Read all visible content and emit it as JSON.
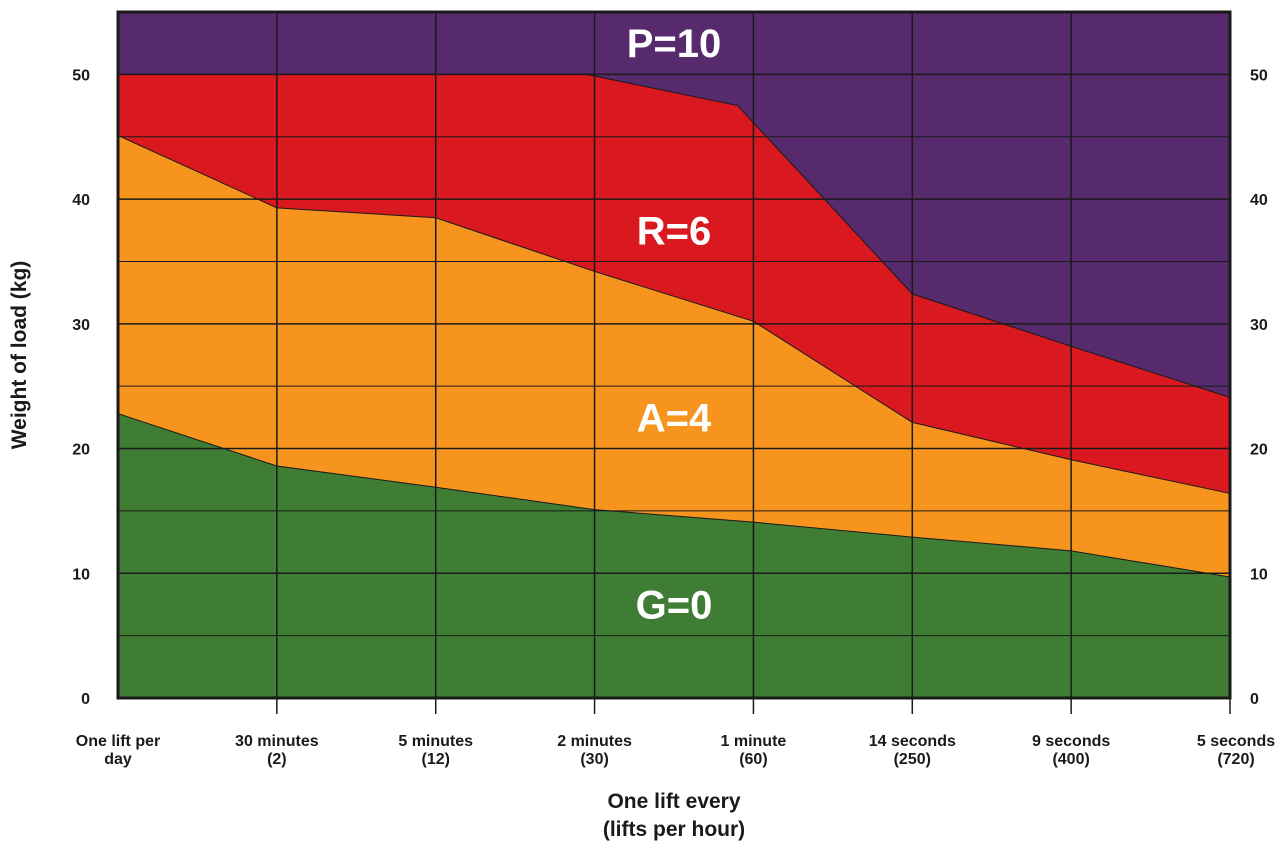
{
  "chart_data": {
    "type": "area",
    "x_categories": [
      [
        "One lift per",
        "day"
      ],
      [
        "30 minutes",
        "(2)"
      ],
      [
        "5 minutes",
        "(12)"
      ],
      [
        "2 minutes",
        "(30)"
      ],
      [
        "1 minute",
        "(60)"
      ],
      [
        "14 seconds",
        "(250)"
      ],
      [
        "9 seconds",
        "(400)"
      ],
      [
        "5 seconds",
        "(720)"
      ]
    ],
    "xlabel": [
      "One lift every",
      "(lifts per hour)"
    ],
    "ylabel": "Weight of load (kg)",
    "ylim": [
      0,
      55
    ],
    "yticks": [
      0,
      10,
      20,
      30,
      40,
      50
    ],
    "y_axis_right": true,
    "grid": true,
    "boundaries": [
      {
        "name": "G/A",
        "x": [
          0,
          1,
          2,
          3,
          4,
          5,
          6,
          7
        ],
        "y": [
          22.8,
          18.6,
          16.9,
          15.1,
          14.1,
          12.9,
          11.8,
          9.7
        ]
      },
      {
        "name": "A/R",
        "x": [
          0,
          1,
          2,
          3,
          4,
          5,
          6,
          7
        ],
        "y": [
          45.1,
          39.3,
          38.5,
          34.2,
          30.2,
          22.1,
          19.1,
          16.4
        ]
      },
      {
        "name": "R/P",
        "x": [
          0,
          1,
          2,
          2.95,
          3.9,
          5,
          6,
          7
        ],
        "y": [
          50,
          50,
          50,
          50,
          47.5,
          32.4,
          28.2,
          24.1
        ]
      }
    ],
    "bands": [
      {
        "label": "G=0",
        "color": "#3e7d33",
        "label_x": 3.5,
        "label_y": 7.5
      },
      {
        "label": "A=4",
        "color": "#f7941e",
        "label_x": 3.5,
        "label_y": 22.5
      },
      {
        "label": "R=6",
        "color": "#d9181f",
        "label_x": 3.5,
        "label_y": 37.5
      },
      {
        "label": "P=10",
        "color": "#572a6d",
        "label_x": 3.5,
        "label_y": 52.5
      }
    ]
  }
}
